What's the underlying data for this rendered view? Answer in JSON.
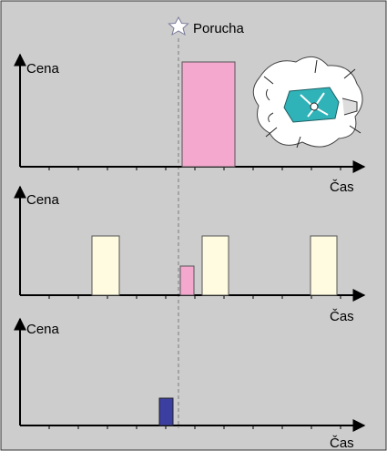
{
  "event": {
    "label": "Porucha",
    "icon": "star-icon"
  },
  "illustration": {
    "icon": "broken-machine-icon"
  },
  "panels": [
    {
      "ylabel": "Cena",
      "xlabel": "Čas",
      "bars": [
        {
          "color": "#f4a8cd"
        }
      ]
    },
    {
      "ylabel": "Cena",
      "xlabel": "Čas",
      "bars": [
        {
          "color": "#fffbe0"
        },
        {
          "color": "#f4a8cd"
        },
        {
          "color": "#fffbe0"
        },
        {
          "color": "#fffbe0"
        }
      ]
    },
    {
      "ylabel": "Cena",
      "xlabel": "Čas",
      "bars": [
        {
          "color": "#3b3fa0"
        }
      ]
    }
  ],
  "colors": {
    "background": "#cdcdcd",
    "axis": "#000000",
    "event_line": "#7a7a7a"
  }
}
